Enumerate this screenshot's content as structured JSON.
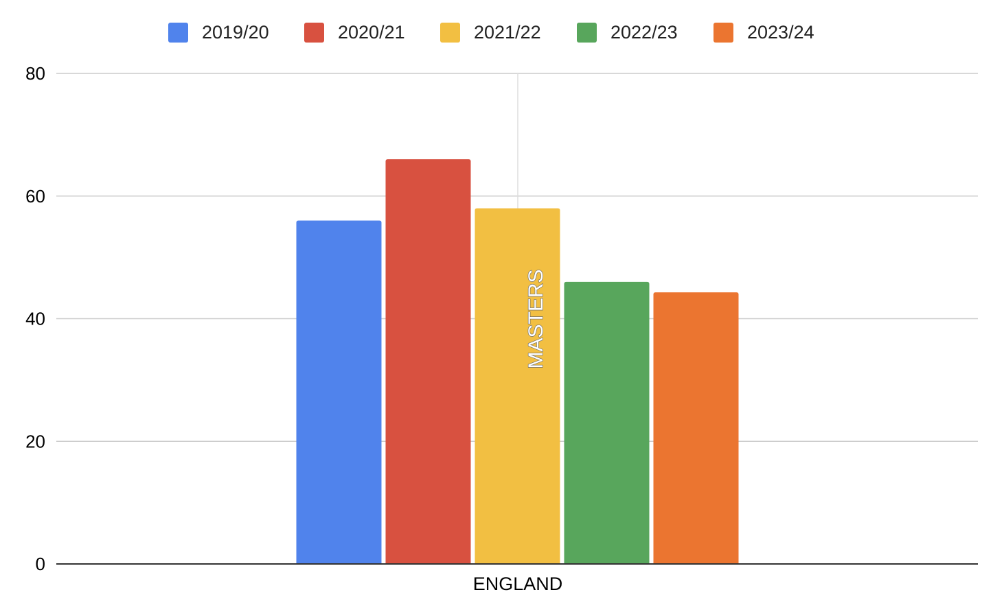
{
  "chart_data": {
    "type": "bar",
    "categories": [
      "ENGLAND"
    ],
    "series": [
      {
        "name": "2019/20",
        "values": [
          56
        ],
        "color": "#5083ec"
      },
      {
        "name": "2020/21",
        "values": [
          66
        ],
        "color": "#d85140"
      },
      {
        "name": "2021/22",
        "values": [
          58
        ],
        "color": "#f2bf42"
      },
      {
        "name": "2022/23",
        "values": [
          46
        ],
        "color": "#58a65c"
      },
      {
        "name": "2023/24",
        "values": [
          44.3
        ],
        "color": "#eb7530"
      }
    ],
    "yticks": [
      "0",
      "20",
      "40",
      "60",
      "80"
    ],
    "ylim": [
      0,
      80
    ],
    "annotation": "MASTERS",
    "legend_position": "top",
    "grid": true
  }
}
